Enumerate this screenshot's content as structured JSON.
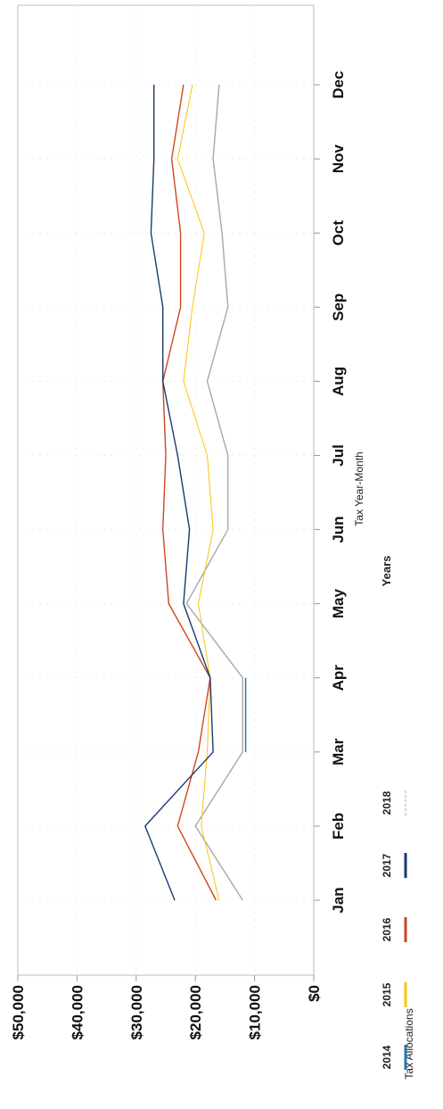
{
  "chart_data": {
    "type": "line",
    "orientation": "rotated-90-clockwise",
    "title": "",
    "xlabel": "Tax Year-Month",
    "ylabel": "Tax Allocations",
    "categories": [
      "Jan",
      "Feb",
      "Mar",
      "Apr",
      "May",
      "Jun",
      "Jul",
      "Aug",
      "Sep",
      "Oct",
      "Nov",
      "Dec"
    ],
    "y_ticks": [
      "$0",
      "$10,000",
      "$20,000",
      "$30,000",
      "$40,000",
      "$50,000"
    ],
    "ylim": [
      0,
      50000
    ],
    "grid": true,
    "legend": {
      "title": "Years",
      "placement": "bottom"
    },
    "series": [
      {
        "name": "2014",
        "color": "#1f77b4",
        "values": [
          null,
          null,
          11500,
          11500,
          null,
          null,
          null,
          null,
          null,
          null,
          null,
          null
        ]
      },
      {
        "name": "2015",
        "color": "#ffc20e",
        "values": [
          16000,
          19000,
          18000,
          17500,
          19500,
          17000,
          18000,
          22000,
          20500,
          18500,
          23000,
          20500
        ]
      },
      {
        "name": "2016",
        "color": "#d1451f",
        "values": [
          16500,
          23000,
          19500,
          17500,
          24500,
          25500,
          25000,
          25500,
          22500,
          22500,
          24000,
          22000
        ]
      },
      {
        "name": "2017",
        "color": "#1a3a6e",
        "values": [
          23500,
          28500,
          17000,
          17500,
          22000,
          21000,
          23000,
          25500,
          25500,
          27500,
          27000,
          27000
        ]
      },
      {
        "name": "2018",
        "color": "#a8a8a8",
        "values": [
          12000,
          20000,
          12000,
          12000,
          21500,
          14500,
          14500,
          18000,
          14500,
          15500,
          17000,
          16000
        ]
      }
    ]
  }
}
